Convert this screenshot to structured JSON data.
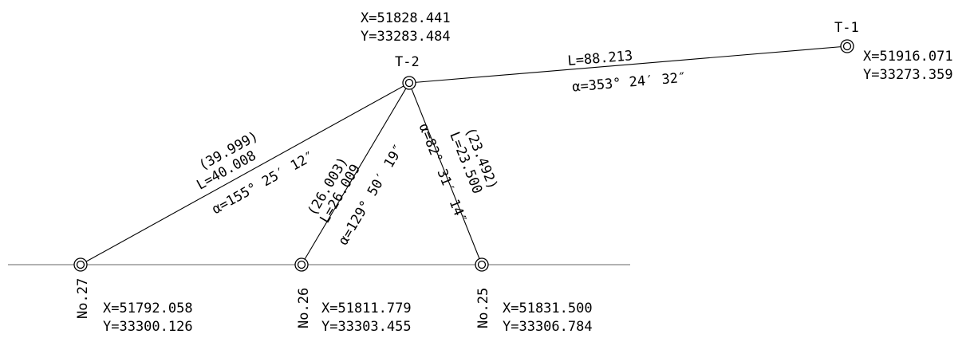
{
  "points": {
    "t1": {
      "name": "T-1",
      "x": "X=51916.071",
      "y": "Y=33273.359"
    },
    "t2": {
      "name": "T-2",
      "x": "X=51828.441",
      "y": "Y=33283.484"
    },
    "no27": {
      "name": "No.27",
      "x": "X=51792.058",
      "y": "Y=33300.126"
    },
    "no26": {
      "name": "No.26",
      "x": "X=51811.779",
      "y": "Y=33303.455"
    },
    "no25": {
      "name": "No.25",
      "x": "X=51831.500",
      "y": "Y=33306.784"
    }
  },
  "legs": {
    "t2_t1": {
      "length": "L=88.213",
      "azimuth": "α=353° 24′ 32″"
    },
    "t2_no27": {
      "measured": "(39.999)",
      "length": "L=40.008",
      "azimuth": "α=155° 25′ 12″"
    },
    "t2_no26": {
      "measured": "(26.003)",
      "length": "L=26.009",
      "azimuth": "α=129° 50′ 19″"
    },
    "t2_no25": {
      "measured": "(23.492)",
      "length": "L=23.500",
      "azimuth": "α=82° 31′ 14″"
    }
  }
}
